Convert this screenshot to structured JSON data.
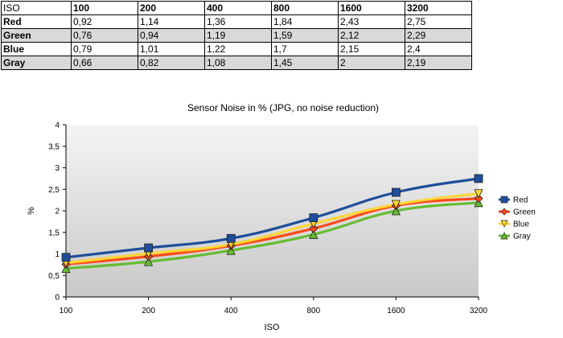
{
  "table": {
    "header": [
      "ISO",
      "100",
      "200",
      "400",
      "800",
      "1600",
      "3200"
    ],
    "rows": [
      [
        "Red",
        "0,92",
        "1,14",
        "1,36",
        "1,84",
        "2,43",
        "2,75"
      ],
      [
        "Green",
        "0,76",
        "0,94",
        "1,19",
        "1,59",
        "2,12",
        "2,29"
      ],
      [
        "Blue",
        "0,79",
        "1,01",
        "1,22",
        "1,7",
        "2,15",
        "2,4"
      ],
      [
        "Gray",
        "0,66",
        "0,82",
        "1,08",
        "1,45",
        "2",
        "2,19"
      ]
    ]
  },
  "chart_data": {
    "type": "line",
    "title": "Sensor Noise in % (JPG, no noise reduction)",
    "xlabel": "ISO",
    "ylabel": "%",
    "categories": [
      "100",
      "200",
      "400",
      "800",
      "1600",
      "3200"
    ],
    "ylim": [
      0,
      4
    ],
    "yticks": [
      "0",
      "0,5",
      "1",
      "1,5",
      "2",
      "2,5",
      "3",
      "3,5",
      "4"
    ],
    "grid": false,
    "legend_position": "right",
    "series": [
      {
        "name": "Red",
        "values": [
          0.92,
          1.14,
          1.36,
          1.84,
          2.43,
          2.75
        ],
        "color": "#1f4e9a",
        "marker": "square"
      },
      {
        "name": "Green",
        "values": [
          0.76,
          0.94,
          1.19,
          1.59,
          2.12,
          2.29
        ],
        "color": "#ff4a1a",
        "marker": "diamond"
      },
      {
        "name": "Blue",
        "values": [
          0.79,
          1.01,
          1.22,
          1.7,
          2.15,
          2.4
        ],
        "color": "#ffd633",
        "marker": "triangle-down"
      },
      {
        "name": "Gray",
        "values": [
          0.66,
          0.82,
          1.08,
          1.45,
          2.0,
          2.19
        ],
        "color": "#66bb33",
        "marker": "triangle-up"
      }
    ]
  }
}
